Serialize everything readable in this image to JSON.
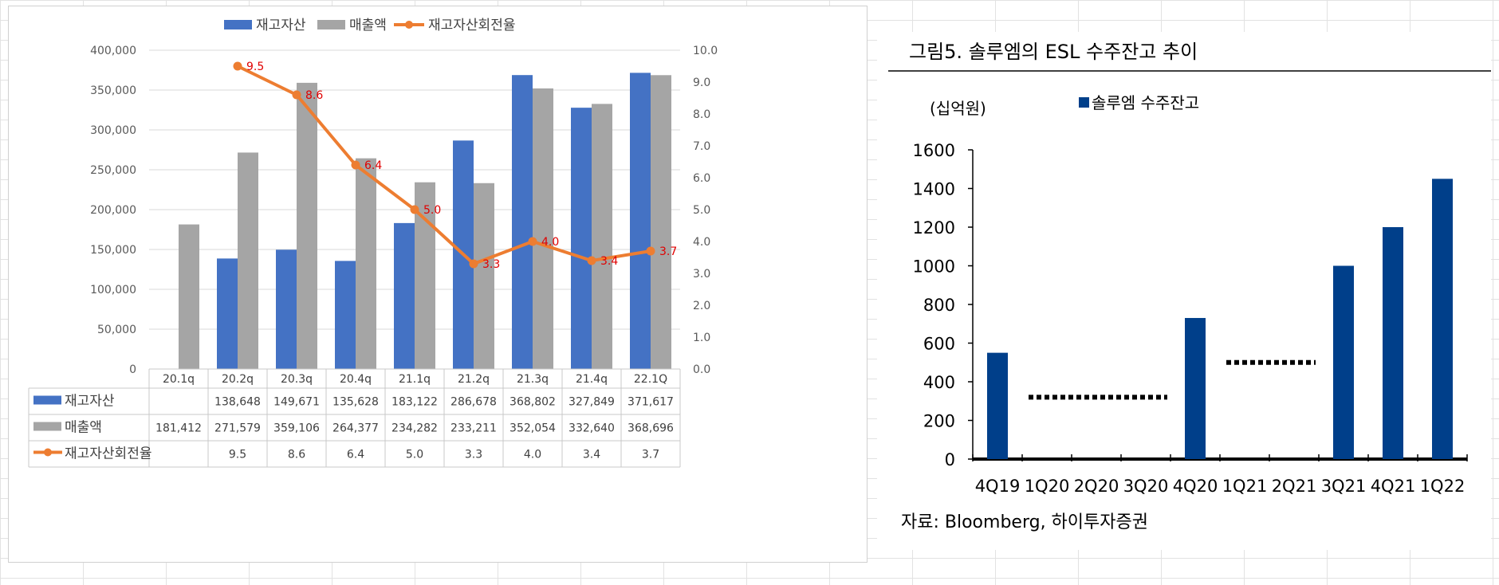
{
  "left_chart": {
    "legend": [
      "재고자산",
      "매출액",
      "재고자산회전율"
    ],
    "table_labels": [
      "재고자산",
      "매출액",
      "재고자산회전율"
    ],
    "colors": {
      "inventory": "#4472C4",
      "sales": "#A5A5A5",
      "turnover": "#ED7D31",
      "label": "#E00000"
    }
  },
  "right_chart": {
    "title": "그림5. 솔루엠의 ESL 수주잔고 추이",
    "unit": "(십억원)",
    "legend": "솔루엠 수주잔고",
    "source": "자료: Bloomberg,  하이투자증권",
    "color": "#003F8A"
  },
  "chart_data": [
    {
      "type": "bar",
      "categories": [
        "20.1q",
        "20.2q",
        "20.3q",
        "20.4q",
        "21.1q",
        "21.2q",
        "21.3q",
        "21.4q",
        "22.1Q"
      ],
      "series": [
        {
          "name": "재고자산",
          "values": [
            null,
            138648,
            149671,
            135628,
            183122,
            286678,
            368802,
            327849,
            371617
          ],
          "table": [
            "",
            "138,648",
            "149,671",
            "135,628",
            "183,122",
            "286,678",
            "368,802",
            "327,849",
            "371,617"
          ]
        },
        {
          "name": "매출액",
          "values": [
            181412,
            271579,
            359106,
            264377,
            234282,
            233211,
            352054,
            332640,
            368696
          ],
          "table": [
            "181,412",
            "271,579",
            "359,106",
            "264,377",
            "234,282",
            "233,211",
            "352,054",
            "332,640",
            "368,696"
          ]
        },
        {
          "name": "재고자산회전율",
          "type": "line",
          "axis": "right",
          "values": [
            null,
            9.5,
            8.6,
            6.4,
            5.0,
            3.3,
            4.0,
            3.4,
            3.7
          ],
          "table": [
            "",
            "9.5",
            "8.6",
            "6.4",
            "5.0",
            "3.3",
            "4.0",
            "3.4",
            "3.7"
          ]
        }
      ],
      "ylim": [
        0,
        400000
      ],
      "y_ticks": [
        "0",
        "50,000",
        "100,000",
        "150,000",
        "200,000",
        "250,000",
        "300,000",
        "350,000",
        "400,000"
      ],
      "y2lim": [
        0,
        10
      ],
      "y2_ticks": [
        "0.0",
        "1.0",
        "2.0",
        "3.0",
        "4.0",
        "5.0",
        "6.0",
        "7.0",
        "8.0",
        "9.0",
        "10.0"
      ],
      "legend_position": "top-center",
      "grid": true
    },
    {
      "type": "bar",
      "title": "그림5. 솔루엠의 ESL 수주잔고 추이",
      "categories": [
        "4Q19",
        "1Q20",
        "2Q20",
        "3Q20",
        "4Q20",
        "1Q21",
        "2Q21",
        "3Q21",
        "4Q21",
        "1Q22"
      ],
      "values": [
        550,
        null,
        null,
        null,
        730,
        null,
        null,
        1000,
        1200,
        1450
      ],
      "gap_segments": [
        {
          "from": "1Q20",
          "to": "3Q20",
          "value": 320
        },
        {
          "from": "1Q21",
          "to": "2Q21",
          "value": 500
        }
      ],
      "ylim": [
        0,
        1600
      ],
      "y_ticks": [
        "0",
        "200",
        "400",
        "600",
        "800",
        "1000",
        "1200",
        "1400",
        "1600"
      ],
      "ylabel": "(십억원)",
      "legend": "솔루엠 수주잔고",
      "grid": false
    }
  ]
}
